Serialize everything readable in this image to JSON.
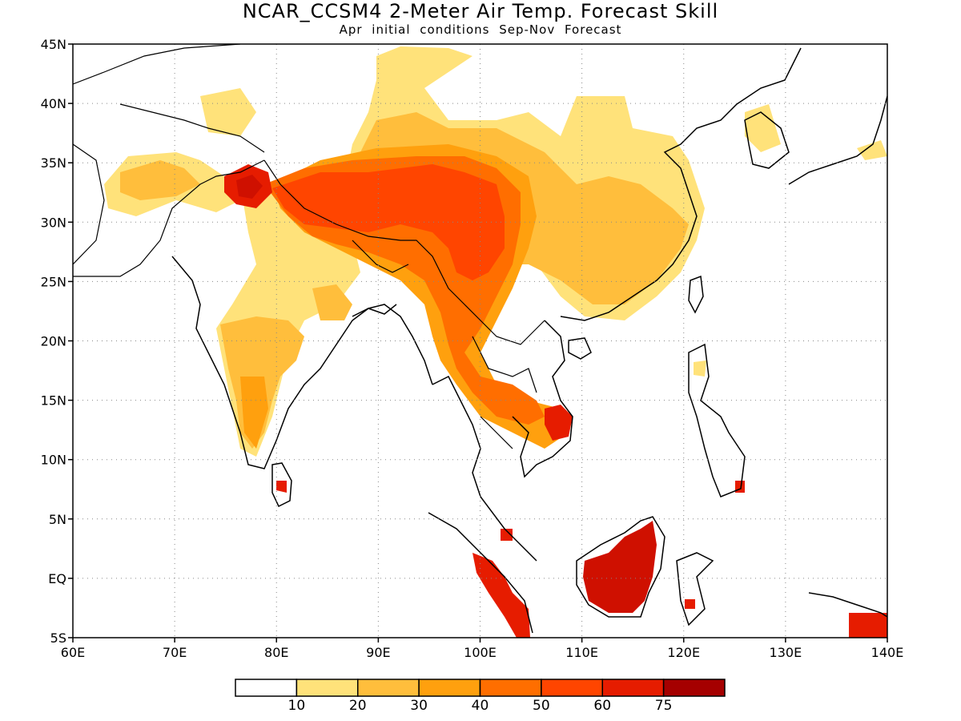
{
  "map": {
    "title": "NCAR_CCSM4 2-Meter Air Temp. Forecast Skill",
    "subtitle": "Apr initial conditions   Sep-Nov Forecast",
    "lon_range": [
      60,
      140
    ],
    "lat_range": [
      -5,
      45
    ],
    "lon_ticks": [
      "60E",
      "70E",
      "80E",
      "90E",
      "100E",
      "110E",
      "120E",
      "130E",
      "140E"
    ],
    "lat_ticks": [
      "45N",
      "40N",
      "35N",
      "30N",
      "25N",
      "20N",
      "15N",
      "10N",
      "5N",
      "EQ",
      "5S"
    ],
    "gridlines": "dotted",
    "colors": {
      "land_outline": "#000000",
      "background": "#ffffff"
    }
  },
  "colorbar": {
    "bins": [
      {
        "color": "#ffffff",
        "label": ""
      },
      {
        "color": "#ffe27a",
        "label": "10"
      },
      {
        "color": "#ffbe3c",
        "label": "20"
      },
      {
        "color": "#ffa00e",
        "label": "30"
      },
      {
        "color": "#ff6e00",
        "label": "40"
      },
      {
        "color": "#ff4500",
        "label": "50"
      },
      {
        "color": "#e61c00",
        "label": "60"
      },
      {
        "color": "#a50000",
        "label": "75"
      }
    ]
  },
  "skill_regions": [
    {
      "name": "tibetan-plateau",
      "level": 50
    },
    {
      "name": "northwest-india-pakistan",
      "level": 60
    },
    {
      "name": "north-india",
      "level": 40
    },
    {
      "name": "central-india",
      "level": 30
    },
    {
      "name": "yunnan-myanmar",
      "level": 50
    },
    {
      "name": "indochina",
      "level": 40
    },
    {
      "name": "southern-vietnam",
      "level": 60
    },
    {
      "name": "south-china",
      "level": 20
    },
    {
      "name": "north-china",
      "level": 10
    },
    {
      "name": "borneo",
      "level": 75
    },
    {
      "name": "sumatra",
      "level": 60
    },
    {
      "name": "sri-lanka",
      "level": 60
    },
    {
      "name": "new-guinea",
      "level": 60
    }
  ]
}
